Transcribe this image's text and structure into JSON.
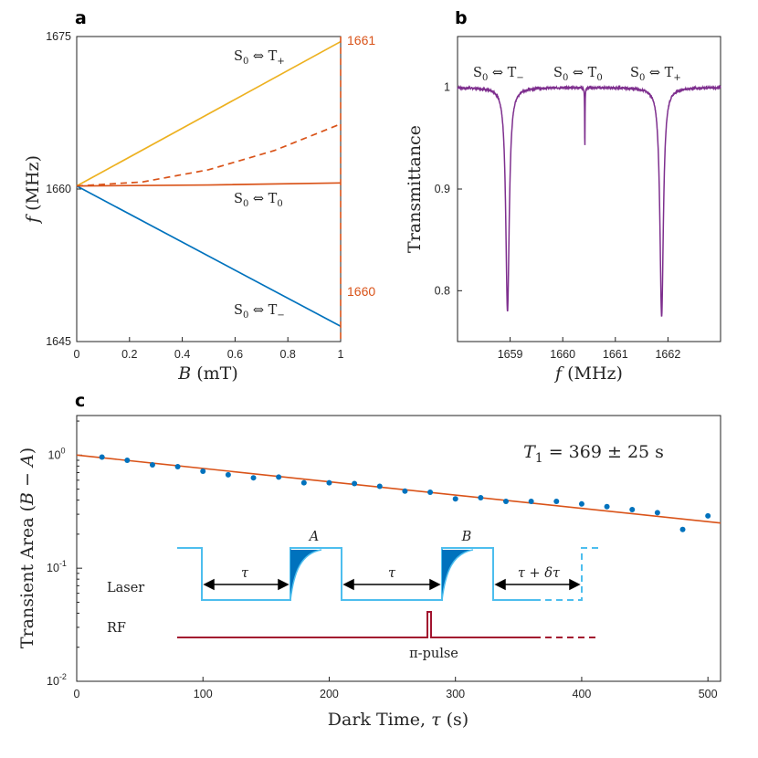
{
  "colors": {
    "orange": "#D95319",
    "yellow": "#EDB120",
    "blue": "#0072BD",
    "purple": "#7E2F8E",
    "cyan": "#4DBEEE",
    "crimson": "#A2142F"
  },
  "chart_data": [
    {
      "panel": "a",
      "type": "line",
      "xlabel_var": "B",
      "xlabel_unit": " (mT)",
      "ylabel_var": "f",
      "ylabel_unit": " (MHz)",
      "xlim": [
        0,
        1
      ],
      "ylim": [
        1645,
        1675
      ],
      "xticks": [
        "0",
        "0.2",
        "0.4",
        "0.6",
        "0.8",
        "1"
      ],
      "yticks": [
        "1645",
        "1660",
        "1675"
      ],
      "series": [
        {
          "name": "S0<->T+",
          "color": "yellow",
          "style": "solid",
          "x": [
            0,
            1
          ],
          "y": [
            1660.3,
            1674.5
          ]
        },
        {
          "name": "S0<->T0",
          "color": "orange",
          "style": "solid",
          "x": [
            0,
            0.5,
            1
          ],
          "y": [
            1660.3,
            1660.4,
            1660.6
          ]
        },
        {
          "name": "S0<->T-",
          "color": "blue",
          "style": "solid",
          "x": [
            0,
            1
          ],
          "y": [
            1660.3,
            1646.5
          ]
        },
        {
          "name": "dashed",
          "color": "orange",
          "style": "dashed",
          "x": [
            0,
            0.25,
            0.5,
            0.75,
            1
          ],
          "y": [
            1660.3,
            1660.7,
            1661.9,
            1663.8,
            1666.4
          ]
        }
      ],
      "right_axis": {
        "label_top": "1661",
        "label_bottom": "1660"
      },
      "labels": {
        "tplus": "S0 ⇔ T+",
        "tzero": "S0 ⇔ T0",
        "tminus": "S0 ⇔ T−"
      }
    },
    {
      "panel": "b",
      "type": "line",
      "xlabel_var": "f",
      "xlabel_unit": " (MHz)",
      "ylabel": "Transmittance",
      "xlim": [
        1658,
        1663
      ],
      "ylim": [
        0.75,
        1.05
      ],
      "xticks": [
        "1659",
        "1660",
        "1661",
        "1662"
      ],
      "yticks": [
        "0.8",
        "0.9",
        "1"
      ],
      "dips": [
        {
          "center": 1658.95,
          "depth": 0.22,
          "width": 0.04
        },
        {
          "center": 1660.42,
          "depth": 0.064,
          "width": 0.004
        },
        {
          "center": 1661.88,
          "depth": 0.225,
          "width": 0.04
        }
      ],
      "labels": {
        "tminus": "S0 ⇔ T−",
        "tzero": "S0 ⇔ T0",
        "tplus": "S0 ⇔ T+"
      }
    },
    {
      "panel": "c",
      "type": "scatter",
      "xlabel": "Dark Time, τ (s)",
      "ylabel": "Transient Area (B − A)",
      "xlim": [
        0,
        510
      ],
      "ylim_log10": [
        -2,
        0.35
      ],
      "xticks": [
        "0",
        "100",
        "200",
        "300",
        "400",
        "500"
      ],
      "yticks": [
        "10-2",
        "10-1",
        "100"
      ],
      "x": [
        20,
        40,
        60,
        80,
        100,
        120,
        140,
        160,
        180,
        200,
        220,
        240,
        260,
        280,
        300,
        320,
        340,
        360,
        380,
        400,
        420,
        440,
        460,
        480,
        500
      ],
      "y": [
        0.96,
        0.9,
        0.82,
        0.79,
        0.72,
        0.67,
        0.63,
        0.64,
        0.57,
        0.57,
        0.56,
        0.53,
        0.48,
        0.47,
        0.41,
        0.42,
        0.39,
        0.39,
        0.39,
        0.37,
        0.35,
        0.33,
        0.31,
        0.22,
        0.29
      ],
      "fit": {
        "T1": 369,
        "amplitude": 1.0
      },
      "fit_label": "T1 = 369 ± 25 s",
      "inset": {
        "laser": "Laser",
        "rf": "RF",
        "pulse": "π-pulse",
        "A": "A",
        "B": "B",
        "tau": "τ",
        "tau2": "τ + δτ"
      }
    }
  ]
}
